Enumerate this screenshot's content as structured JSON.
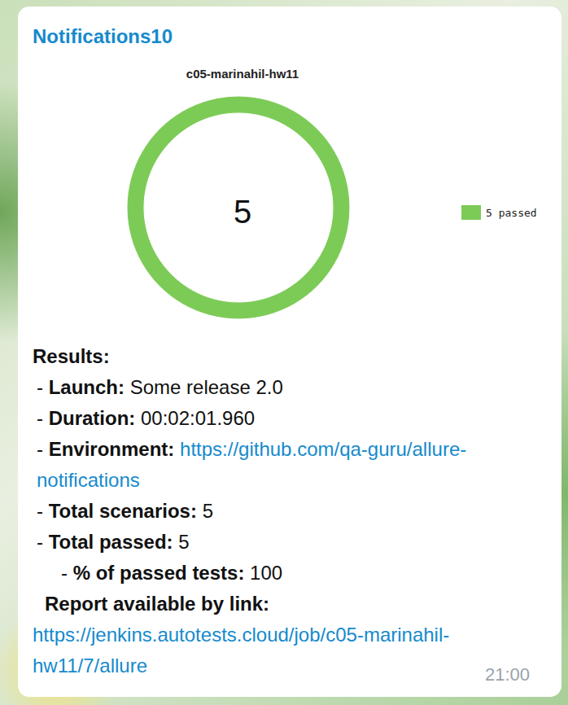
{
  "header": {
    "title": "Notifications10"
  },
  "chart_data": {
    "type": "donut",
    "title": "c05-marinahil-hw11",
    "categories": [
      "5 passed"
    ],
    "values": [
      5
    ],
    "colors": [
      "#7dcb57"
    ],
    "total": 5,
    "legend": "right"
  },
  "message": {
    "heading": "Results:",
    "items": [
      {
        "bullet": "-",
        "label": "Launch:",
        "value": "Some release 2.0"
      },
      {
        "bullet": "-",
        "label": "Duration:",
        "value": "00:02:01.960"
      },
      {
        "bullet": "-",
        "label": "Environment:",
        "link": "https://github.com/qa-guru/allure-notifications"
      },
      {
        "bullet": "-",
        "label": "Total scenarios:",
        "value": 5
      },
      {
        "bullet": "-",
        "label": "Total passed:",
        "value": 5,
        "children": [
          {
            "bullet": "-",
            "label": "% of passed tests:",
            "value": 100
          }
        ]
      }
    ],
    "report": {
      "label": "Report available by link:",
      "link": "https://jenkins.autotests.cloud/job/c05-marinahil-hw11/7/allure"
    },
    "time": "21:00"
  }
}
